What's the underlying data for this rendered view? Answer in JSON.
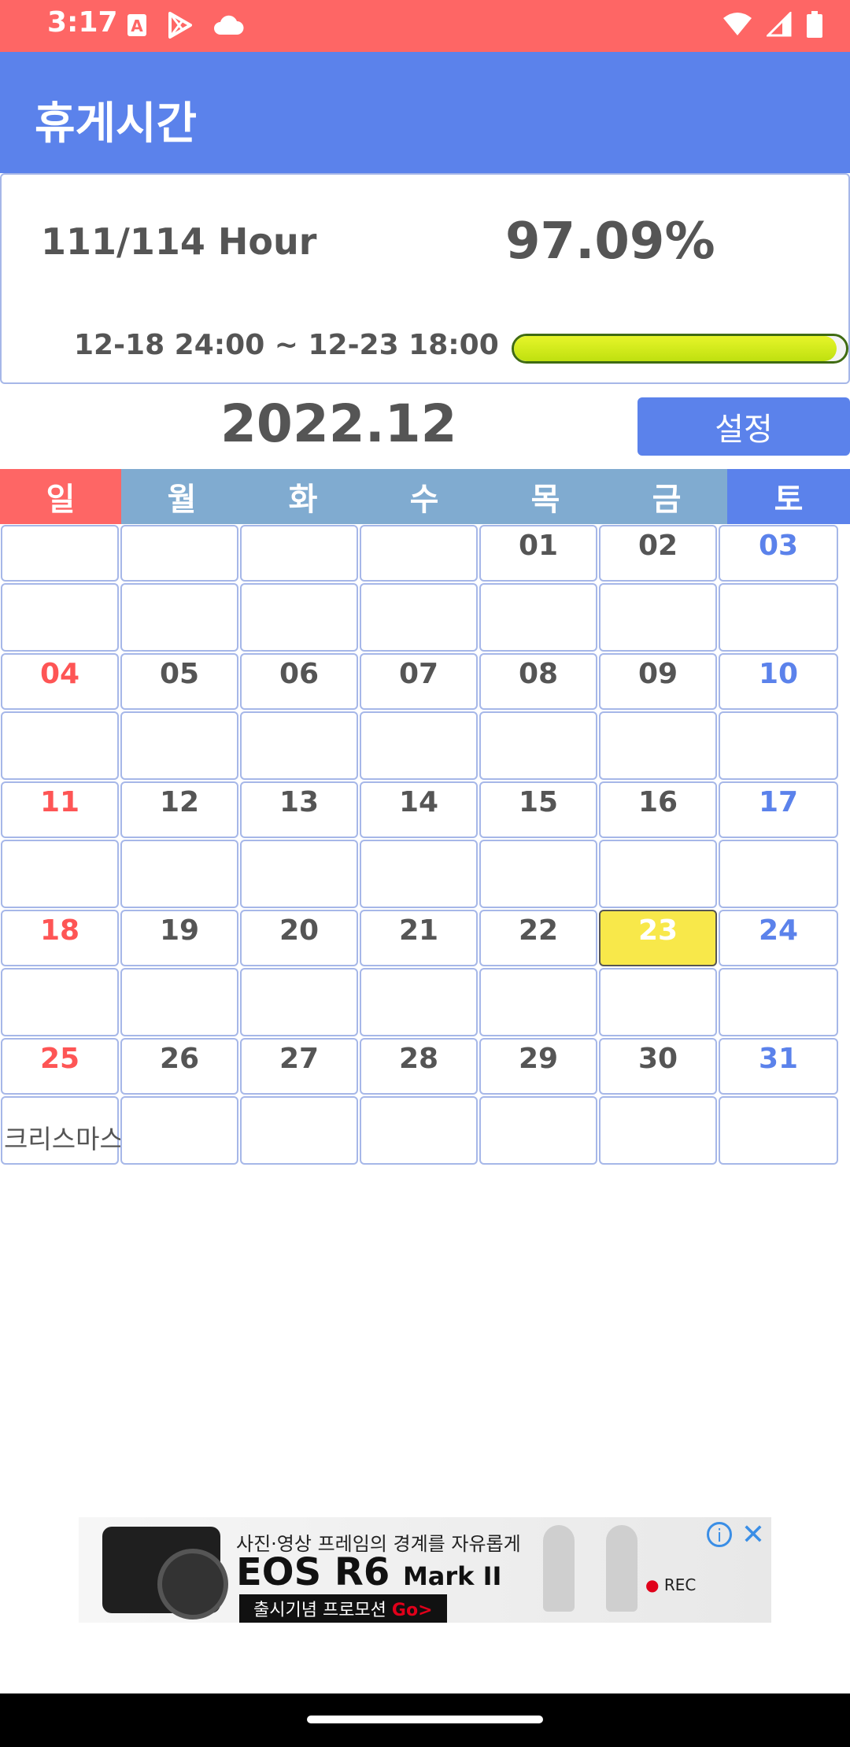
{
  "status_bar": {
    "time": "3:17",
    "left_icons": [
      "text-a-icon",
      "play-store-icon",
      "cloud-icon"
    ],
    "right_icons": [
      "wifi-icon",
      "signal-icon",
      "battery-icon"
    ]
  },
  "app_bar": {
    "title": "휴게시간"
  },
  "summary": {
    "hours": "111/114 Hour",
    "percent": "97.09%",
    "period": "12-18 24:00 ~ 12-23 18:00",
    "progress": 0.9709
  },
  "month": {
    "label": "2022.12",
    "settings_label": "설정"
  },
  "weekdays": [
    "일",
    "월",
    "화",
    "수",
    "목",
    "금",
    "토"
  ],
  "calendar": {
    "weeks": [
      {
        "dates": [
          "",
          "",
          "",
          "",
          "01",
          "02",
          "03"
        ],
        "notes": [
          "",
          "",
          "",
          "",
          "",
          "",
          ""
        ]
      },
      {
        "dates": [
          "04",
          "05",
          "06",
          "07",
          "08",
          "09",
          "10"
        ],
        "notes": [
          "",
          "",
          "",
          "",
          "",
          "",
          ""
        ]
      },
      {
        "dates": [
          "11",
          "12",
          "13",
          "14",
          "15",
          "16",
          "17"
        ],
        "notes": [
          "",
          "",
          "",
          "",
          "",
          "",
          ""
        ]
      },
      {
        "dates": [
          "18",
          "19",
          "20",
          "21",
          "22",
          "23",
          "24"
        ],
        "notes": [
          "",
          "",
          "",
          "",
          "",
          "",
          ""
        ]
      },
      {
        "dates": [
          "25",
          "26",
          "27",
          "28",
          "29",
          "30",
          "31"
        ],
        "notes": [
          "크리스마스",
          "",
          "",
          "",
          "",
          "",
          ""
        ]
      }
    ],
    "today": "23"
  },
  "ad": {
    "tagline": "사진·영상 프레임의 경계를 자유롭게",
    "headline": "EOS R6",
    "headline_suffix": "Mark II",
    "promo": "출시기념 프로모션",
    "promo_go": "Go>",
    "rec": "REC",
    "rec_dot": "●",
    "info": "i",
    "close": "✕"
  }
}
